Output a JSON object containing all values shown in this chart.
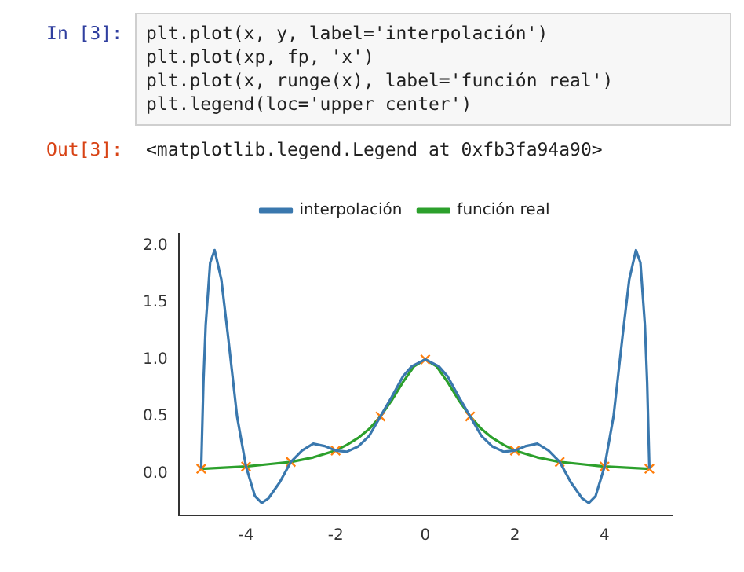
{
  "chart_data": {
    "type": "line",
    "annotations": [
      "In [3]:",
      "plt.plot(x, y, label='interpolación')",
      "plt.plot(xp, fp, 'x')",
      "plt.plot(x, runge(x), label='función real')",
      "plt.legend(loc='upper center')",
      "Out[3]:",
      "<matplotlib.legend.Legend at 0xfb3fa94a90>"
    ],
    "series": [
      {
        "name": "interpolación",
        "color": "#3a78ae",
        "x": [
          -5,
          -4.95,
          -4.9,
          -4.8,
          -4.7,
          -4.55,
          -4.4,
          -4.2,
          -4,
          -3.8,
          -3.65,
          -3.5,
          -3.25,
          -3,
          -2.75,
          -2.5,
          -2.25,
          -2,
          -1.75,
          -1.5,
          -1.25,
          -1,
          -0.75,
          -0.5,
          -0.3,
          0,
          0.3,
          0.5,
          0.75,
          1,
          1.25,
          1.5,
          1.75,
          2,
          2.25,
          2.5,
          2.75,
          3,
          3.25,
          3.5,
          3.65,
          3.8,
          4,
          4.2,
          4.4,
          4.55,
          4.7,
          4.8,
          4.9,
          4.95,
          5
        ],
        "values": [
          0.04,
          0.8,
          1.3,
          1.85,
          1.96,
          1.7,
          1.2,
          0.5,
          0.06,
          -0.2,
          -0.26,
          -0.22,
          -0.08,
          0.1,
          0.2,
          0.26,
          0.24,
          0.2,
          0.19,
          0.235,
          0.33,
          0.5,
          0.67,
          0.85,
          0.94,
          1,
          0.94,
          0.85,
          0.67,
          0.5,
          0.33,
          0.235,
          0.19,
          0.2,
          0.24,
          0.26,
          0.2,
          0.1,
          -0.08,
          -0.22,
          -0.26,
          -0.2,
          0.06,
          0.5,
          1.2,
          1.7,
          1.96,
          1.85,
          1.3,
          0.8,
          0.04
        ]
      },
      {
        "type": "scatter",
        "marker": "cross",
        "color": "#ff7f0e",
        "x": [
          -5,
          -4,
          -3,
          -2,
          -1,
          0,
          1,
          2,
          3,
          4,
          5
        ],
        "values": [
          0.04,
          0.06,
          0.1,
          0.2,
          0.5,
          1,
          0.5,
          0.2,
          0.1,
          0.06,
          0.04
        ]
      },
      {
        "name": "función real",
        "color": "#2ca02c",
        "x": [
          -5,
          -4.5,
          -4,
          -3.5,
          -3,
          -2.5,
          -2.25,
          -2,
          -1.75,
          -1.5,
          -1.25,
          -1,
          -0.75,
          -0.5,
          -0.25,
          0,
          0.25,
          0.5,
          0.75,
          1,
          1.25,
          1.5,
          1.75,
          2,
          2.25,
          2.5,
          3,
          3.5,
          4,
          4.5,
          5
        ],
        "values": [
          0.04,
          0.05,
          0.06,
          0.08,
          0.1,
          0.14,
          0.17,
          0.2,
          0.25,
          0.31,
          0.39,
          0.5,
          0.64,
          0.8,
          0.94,
          1,
          0.94,
          0.8,
          0.64,
          0.5,
          0.39,
          0.31,
          0.25,
          0.2,
          0.17,
          0.14,
          0.1,
          0.08,
          0.06,
          0.05,
          0.04
        ]
      }
    ],
    "xlim": [
      -5.5,
      5.5
    ],
    "xticks": [
      -4,
      -2,
      0,
      2,
      4
    ],
    "ylim": [
      -0.37,
      2.1
    ],
    "yticks": [
      {
        "value": 0,
        "label": "0.0"
      },
      {
        "value": 0.5,
        "label": "0.5"
      },
      {
        "value": 1,
        "label": "1.0"
      },
      {
        "value": 1.5,
        "label": "1.5"
      },
      {
        "value": 2,
        "label": "2.0"
      }
    ],
    "legend": "top",
    "grid": false
  }
}
